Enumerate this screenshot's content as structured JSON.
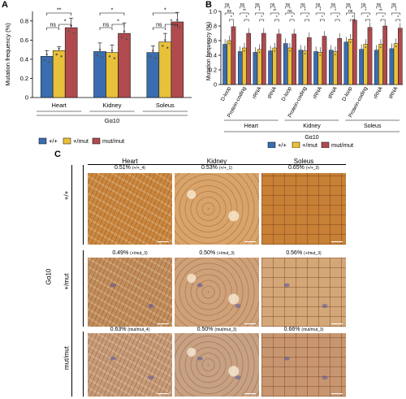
{
  "panels": {
    "a": "A",
    "b": "B",
    "c": "C"
  },
  "colors": {
    "wt": "#3a6db0",
    "het": "#e8c13a",
    "mut": "#b04a4e"
  },
  "legend": {
    "items": [
      {
        "key": "wt",
        "label": "+/+"
      },
      {
        "key": "het",
        "label": "+/mut"
      },
      {
        "key": "mut",
        "label": "mut/mut"
      }
    ]
  },
  "chart_data": [
    {
      "type": "bar",
      "ylabel": "Mutation frequency (%)",
      "ylim": [
        0,
        0.9
      ],
      "yticks": [
        "0",
        "0.2",
        "0.4",
        "0.6",
        "0.8"
      ],
      "categories": [
        "Heart",
        "Kidney",
        "Soleus"
      ],
      "xgroup_label": "Gα10",
      "series": [
        {
          "name": "+/+",
          "values": [
            0.43,
            0.48,
            0.47
          ]
        },
        {
          "name": "+/mut",
          "values": [
            0.49,
            0.47,
            0.58
          ]
        },
        {
          "name": "mut/mut",
          "values": [
            0.73,
            0.67,
            0.79
          ]
        }
      ],
      "errors": [
        [
          0.06,
          0.09,
          0.07
        ],
        [
          0.04,
          0.08,
          0.09
        ],
        [
          0.1,
          0.11,
          0.1
        ]
      ],
      "significance": [
        {
          "group": 0,
          "from": 0,
          "to": 2,
          "label": "**",
          "level": 0
        },
        {
          "group": 0,
          "from": 0,
          "to": 1,
          "label": "ns",
          "level": 1
        },
        {
          "group": 0,
          "from": 1,
          "to": 2,
          "label": "*",
          "level": 1
        },
        {
          "group": 1,
          "from": 0,
          "to": 2,
          "label": "*",
          "level": 0
        },
        {
          "group": 1,
          "from": 0,
          "to": 1,
          "label": "ns",
          "level": 1
        },
        {
          "group": 1,
          "from": 1,
          "to": 2,
          "label": "*",
          "level": 1
        },
        {
          "group": 2,
          "from": 0,
          "to": 2,
          "label": "*",
          "level": 0
        },
        {
          "group": 2,
          "from": 0,
          "to": 1,
          "label": "ns",
          "level": 1
        },
        {
          "group": 2,
          "from": 1,
          "to": 2,
          "label": "*",
          "level": 1
        }
      ]
    },
    {
      "type": "bar",
      "ylabel": "Mutation frequency (%)",
      "ylim": [
        0,
        1.0
      ],
      "yticks": [
        "0",
        "0.2",
        "0.4",
        "0.6",
        "0.8",
        "1.0"
      ],
      "categories": [
        "D-loop",
        "Protein-coding",
        "rRNA",
        "tRNA",
        "D-loop",
        "Protein-coding",
        "rRNA",
        "tRNA",
        "D-loop",
        "Protein-coding",
        "rRNA",
        "tRNA"
      ],
      "tissues": [
        "Heart",
        "Kidney",
        "Soleus"
      ],
      "xgroup_label": "Gα10",
      "series": [
        {
          "name": "+/+",
          "values": [
            0.55,
            0.45,
            0.44,
            0.46,
            0.56,
            0.47,
            0.45,
            0.47,
            0.58,
            0.48,
            0.47,
            0.49
          ]
        },
        {
          "name": "+/mut",
          "values": [
            0.6,
            0.5,
            0.48,
            0.5,
            0.5,
            0.46,
            0.44,
            0.45,
            0.62,
            0.55,
            0.55,
            0.56
          ]
        },
        {
          "name": "mut/mut",
          "values": [
            0.79,
            0.7,
            0.7,
            0.69,
            0.69,
            0.64,
            0.66,
            0.63,
            0.88,
            0.78,
            0.8,
            0.77
          ]
        }
      ],
      "significance_labels": [
        [
          "ns",
          "ns",
          "*"
        ],
        [
          "ns",
          "**",
          "*"
        ],
        [
          "ns",
          "*",
          "*"
        ],
        [
          "ns",
          "**",
          "*"
        ],
        [
          "ns",
          "ns",
          "*"
        ],
        [
          "ns",
          "*",
          "*"
        ],
        [
          "ns",
          "*",
          "*"
        ],
        [
          "ns",
          "*",
          "*"
        ],
        [
          "ns",
          "ns",
          "*"
        ],
        [
          "ns",
          "*",
          "*"
        ],
        [
          "ns",
          "**",
          "*"
        ],
        [
          "ns",
          "*",
          "*"
        ]
      ]
    }
  ],
  "micrographs": {
    "genotype_label": "Gα10",
    "columns": [
      "Heart",
      "Kidney",
      "Soleus"
    ],
    "rows": [
      "+/+",
      "+/mut",
      "mut/mut"
    ],
    "captions": [
      [
        {
          "pct": "0.51%",
          "id": "(+/+_4)"
        },
        {
          "pct": "0.53%",
          "id": "(+/+_1)"
        },
        {
          "pct": "0.65%",
          "id": "(+/+_3)"
        }
      ],
      [
        {
          "pct": "0.49%",
          "id": "(+/mut_3)"
        },
        {
          "pct": "0.50%",
          "id": "(+/mut_3)"
        },
        {
          "pct": "0.56%",
          "id": "(+/mut_3)"
        }
      ],
      [
        {
          "pct": "0.63%",
          "id": "(mut/mut_4)"
        },
        {
          "pct": "0.50%",
          "id": "(mut/mut_3)"
        },
        {
          "pct": "0.66%",
          "id": "(mut/mut_3)"
        }
      ]
    ]
  }
}
